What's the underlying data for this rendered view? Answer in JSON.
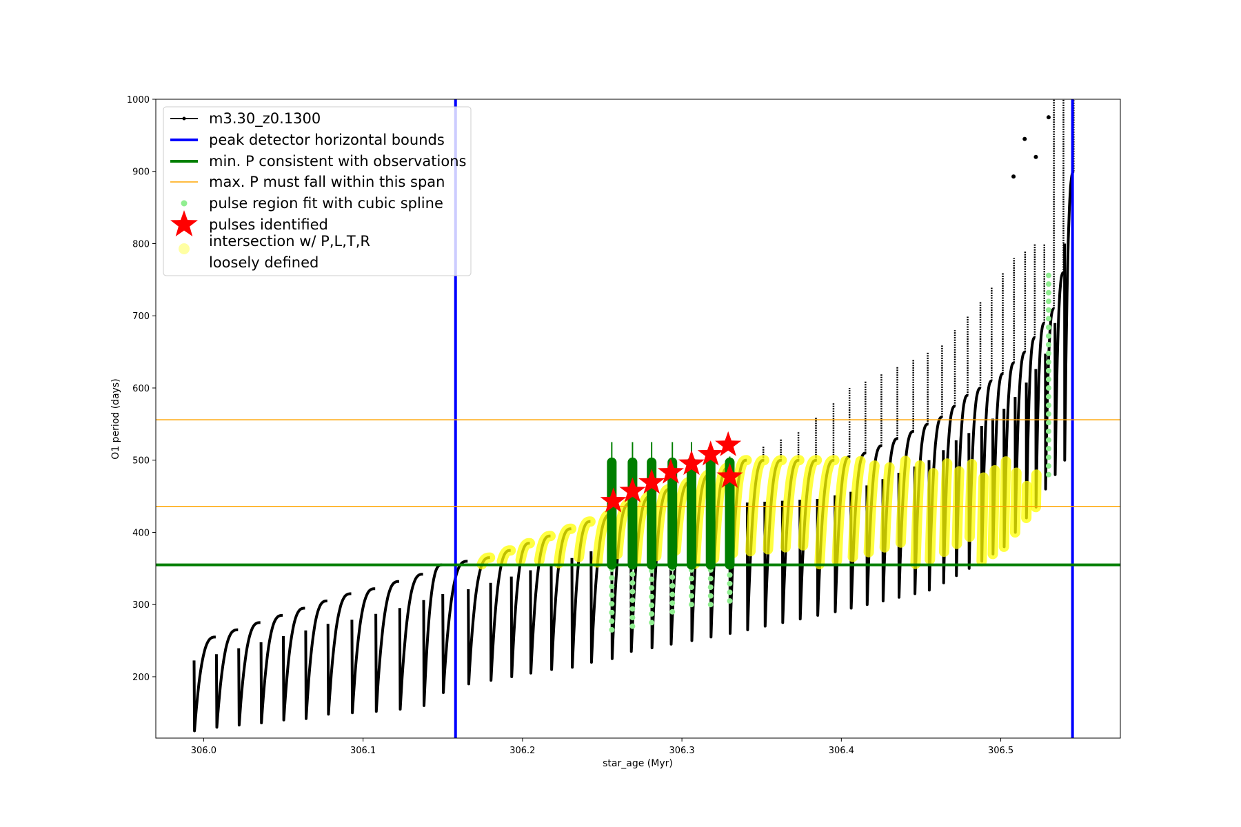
{
  "chart_data": {
    "type": "scatter",
    "title": "",
    "xlabel": "star_age (Myr)",
    "ylabel": "O1 period (days)",
    "xlim": [
      305.97,
      306.575
    ],
    "ylim": [
      115,
      1000
    ],
    "x_ticks": [
      306.0,
      306.1,
      306.2,
      306.3,
      306.4,
      306.5
    ],
    "x_tick_labels": [
      "306.0",
      "306.1",
      "306.2",
      "306.3",
      "306.4",
      "306.5"
    ],
    "y_ticks": [
      200,
      300,
      400,
      500,
      600,
      700,
      800,
      900,
      1000
    ],
    "y_tick_labels": [
      "200",
      "300",
      "400",
      "500",
      "600",
      "700",
      "800",
      "900",
      "1000"
    ],
    "grid": false,
    "legend_position": "upper-left",
    "legend": [
      {
        "label": "m3.30_z0.1300",
        "marker": "line-dot",
        "color": "#000000"
      },
      {
        "label": "peak detector horizontal bounds",
        "marker": "line",
        "color": "#0000ff"
      },
      {
        "label": "min. P consistent with observations",
        "marker": "line",
        "color": "#007f00"
      },
      {
        "label": "max. P must fall within this span",
        "marker": "thin-line",
        "color": "#ffa500"
      },
      {
        "label": "pulse region fit with cubic spline",
        "marker": "dot",
        "color": "#90ee90"
      },
      {
        "label": "pulses identified",
        "marker": "star",
        "color": "#ff0000"
      },
      {
        "label": "intersection w/ P,L,T,R",
        "label2": "loosely defined",
        "marker": "big-dot",
        "color": "#ffff66"
      }
    ],
    "reference_lines": {
      "vertical": [
        {
          "name": "peak detector horizontal bounds",
          "x": [
            306.158,
            306.545
          ],
          "color": "#0000ff"
        }
      ],
      "horizontal": [
        {
          "name": "min. P consistent with observations",
          "y": 355,
          "color": "#007f00"
        },
        {
          "name": "max. P must fall within this span",
          "y": [
            436,
            556
          ],
          "color": "#ffa500"
        }
      ]
    },
    "pulses": {
      "series": "m3.30_z0.1300",
      "color": "#000000",
      "x_start": [
        305.994,
        306.008,
        306.022,
        306.036,
        306.05,
        306.064,
        306.078,
        306.093,
        306.108,
        306.123,
        306.138,
        306.15,
        306.166,
        306.18,
        306.193,
        306.205,
        306.218,
        306.231,
        306.243,
        306.256,
        306.268,
        306.281,
        306.293,
        306.306,
        306.318,
        306.33,
        306.341,
        306.352,
        306.363,
        306.374,
        306.385,
        306.396,
        306.406,
        306.416,
        306.426,
        306.436,
        306.446,
        306.455,
        306.464,
        306.472,
        306.48,
        306.488,
        306.495,
        306.502,
        306.509,
        306.516,
        306.522,
        306.528,
        306.534,
        306.54
      ],
      "period_min": [
        125,
        130,
        133,
        136,
        140,
        142,
        148,
        150,
        152,
        155,
        160,
        178,
        190,
        195,
        200,
        205,
        210,
        213,
        220,
        225,
        235,
        240,
        245,
        250,
        255,
        260,
        265,
        270,
        275,
        280,
        285,
        290,
        295,
        300,
        305,
        310,
        315,
        320,
        330,
        340,
        350,
        360,
        370,
        380,
        400,
        420,
        435,
        460,
        480,
        500
      ],
      "period_max": [
        255,
        265,
        275,
        285,
        295,
        305,
        315,
        322,
        332,
        342,
        355,
        360,
        365,
        375,
        385,
        395,
        405,
        415,
        425,
        440,
        450,
        460,
        470,
        480,
        490,
        500,
        500,
        500,
        500,
        500,
        500,
        505,
        510,
        520,
        530,
        540,
        550,
        560,
        575,
        590,
        600,
        610,
        620,
        635,
        650,
        670,
        690,
        710,
        760,
        900
      ],
      "spike_max": [
        0,
        0,
        0,
        0,
        0,
        0,
        0,
        0,
        0,
        0,
        0,
        0,
        0,
        0,
        0,
        0,
        0,
        0,
        0,
        0,
        0,
        0,
        0,
        0,
        0,
        0,
        520,
        530,
        540,
        560,
        580,
        600,
        610,
        620,
        630,
        640,
        650,
        660,
        680,
        700,
        720,
        740,
        760,
        780,
        790,
        800,
        800,
        1000,
        1000,
        1000
      ]
    },
    "scatter_isolated": [
      {
        "series": "m3.30_z0.1300",
        "x": 306.508,
        "y": 893
      },
      {
        "series": "m3.30_z0.1300",
        "x": 306.515,
        "y": 945
      },
      {
        "series": "m3.30_z0.1300",
        "x": 306.522,
        "y": 920
      },
      {
        "series": "m3.30_z0.1300",
        "x": 306.53,
        "y": 975
      }
    ],
    "spline_regions": [
      {
        "x": 306.256,
        "y_min": 265,
        "y_max": 500
      },
      {
        "x": 306.269,
        "y_min": 270,
        "y_max": 500
      },
      {
        "x": 306.281,
        "y_min": 275,
        "y_max": 500
      },
      {
        "x": 306.294,
        "y_min": 290,
        "y_max": 500
      },
      {
        "x": 306.306,
        "y_min": 300,
        "y_max": 500
      },
      {
        "x": 306.318,
        "y_min": 300,
        "y_max": 500
      },
      {
        "x": 306.33,
        "y_min": 305,
        "y_max": 500
      },
      {
        "x": 306.53,
        "y_min": 480,
        "y_max": 765
      }
    ],
    "fit_region_bars": [
      {
        "x": 306.256,
        "y_min": 355,
        "y_max": 525
      },
      {
        "x": 306.269,
        "y_min": 355,
        "y_max": 525
      },
      {
        "x": 306.281,
        "y_min": 355,
        "y_max": 525
      },
      {
        "x": 306.294,
        "y_min": 355,
        "y_max": 525
      },
      {
        "x": 306.306,
        "y_min": 355,
        "y_max": 525
      },
      {
        "x": 306.318,
        "y_min": 355,
        "y_max": 515
      },
      {
        "x": 306.33,
        "y_min": 355,
        "y_max": 505
      }
    ],
    "pulses_identified": {
      "x": [
        306.257,
        306.269,
        306.281,
        306.293,
        306.306,
        306.318,
        306.329,
        306.33
      ],
      "y": [
        443,
        457,
        469,
        483,
        495,
        508,
        521,
        477
      ]
    },
    "intersection_region": {
      "y_min": 355,
      "x_start": 306.17,
      "x_end": 306.548
    }
  }
}
